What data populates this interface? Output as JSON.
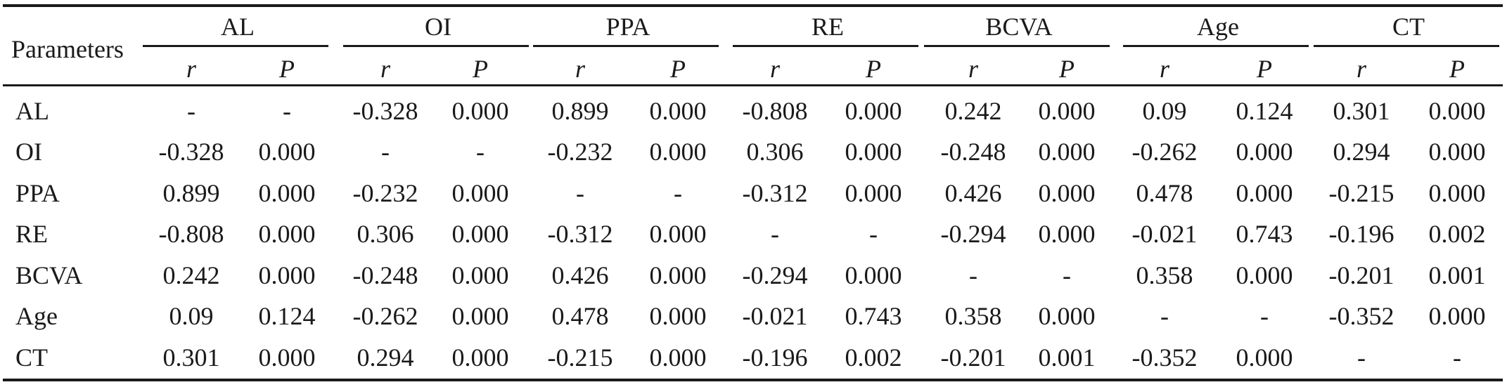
{
  "table": {
    "header_label": "Parameters",
    "groups": [
      "AL",
      "OI",
      "PPA",
      "RE",
      "BCVA",
      "Age",
      "CT"
    ],
    "subheaders": [
      "r",
      "P"
    ],
    "rows": [
      {
        "label": "AL",
        "values": [
          "-",
          "-",
          "-0.328",
          "0.000",
          "0.899",
          "0.000",
          "-0.808",
          "0.000",
          "0.242",
          "0.000",
          "0.09",
          "0.124",
          "0.301",
          "0.000"
        ]
      },
      {
        "label": "OI",
        "values": [
          "-0.328",
          "0.000",
          "-",
          "-",
          "-0.232",
          "0.000",
          "0.306",
          "0.000",
          "-0.248",
          "0.000",
          "-0.262",
          "0.000",
          "0.294",
          "0.000"
        ]
      },
      {
        "label": "PPA",
        "values": [
          "0.899",
          "0.000",
          "-0.232",
          "0.000",
          "-",
          "-",
          "-0.312",
          "0.000",
          "0.426",
          "0.000",
          "0.478",
          "0.000",
          "-0.215",
          "0.000"
        ]
      },
      {
        "label": "RE",
        "values": [
          "-0.808",
          "0.000",
          "0.306",
          "0.000",
          "-0.312",
          "0.000",
          "-",
          "-",
          "-0.294",
          "0.000",
          "-0.021",
          "0.743",
          "-0.196",
          "0.002"
        ]
      },
      {
        "label": "BCVA",
        "values": [
          "0.242",
          "0.000",
          "-0.248",
          "0.000",
          "0.426",
          "0.000",
          "-0.294",
          "0.000",
          "-",
          "-",
          "0.358",
          "0.000",
          "-0.201",
          "0.001"
        ]
      },
      {
        "label": "Age",
        "values": [
          "0.09",
          "0.124",
          "-0.262",
          "0.000",
          "0.478",
          "0.000",
          "-0.021",
          "0.743",
          "0.358",
          "0.000",
          "-",
          "-",
          "-0.352",
          "0.000"
        ]
      },
      {
        "label": "CT",
        "values": [
          "0.301",
          "0.000",
          "0.294",
          "0.000",
          "-0.215",
          "0.000",
          "-0.196",
          "0.002",
          "-0.201",
          "0.001",
          "-0.352",
          "0.000",
          "-",
          "-"
        ]
      }
    ]
  }
}
